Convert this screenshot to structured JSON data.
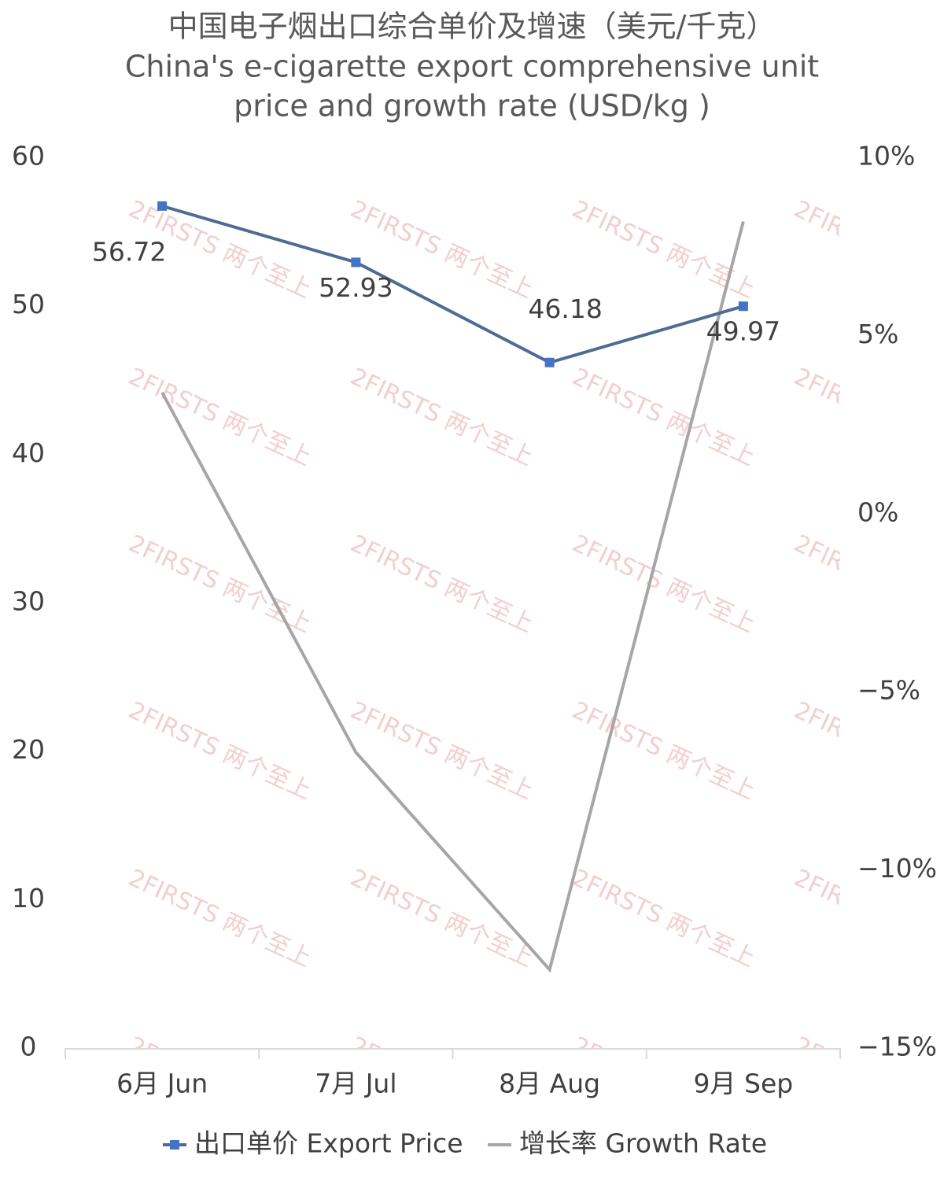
{
  "chart_data": {
    "type": "line",
    "title_lines": [
      "中国电子烟出口综合单价及增速（美元/千克）",
      "China's e-cigarette export comprehensive unit",
      "price and growth rate (USD/kg )"
    ],
    "watermark": "2FIRSTS 两个至上",
    "categories": [
      "6月 Jun",
      "7月 Jul",
      "8月 Aug",
      "9月 Sep"
    ],
    "series": [
      {
        "name": "出口单价 Export Price",
        "color": "#4f6a95",
        "marker_color": "#4472c4",
        "values": [
          56.72,
          52.93,
          46.18,
          49.97
        ]
      },
      {
        "name": "增长率 Growth Rate",
        "color": "#a6a6a6",
        "axis": "y2",
        "values": [
          3.4,
          -6.7,
          -12.8,
          8.2
        ]
      }
    ],
    "ylim": [
      0,
      60
    ],
    "yticks": [
      0,
      10,
      20,
      30,
      40,
      50,
      60
    ],
    "y2lim": [
      -15,
      10
    ],
    "y2ticks": [
      {
        "value": -15,
        "label": "−15%"
      },
      {
        "value": -10,
        "label": "−10%"
      },
      {
        "value": -5,
        "label": "−5%"
      },
      {
        "value": 0,
        "label": "0%"
      },
      {
        "value": 5,
        "label": "5%"
      },
      {
        "value": 10,
        "label": "10%"
      }
    ],
    "legend": "bottom"
  }
}
